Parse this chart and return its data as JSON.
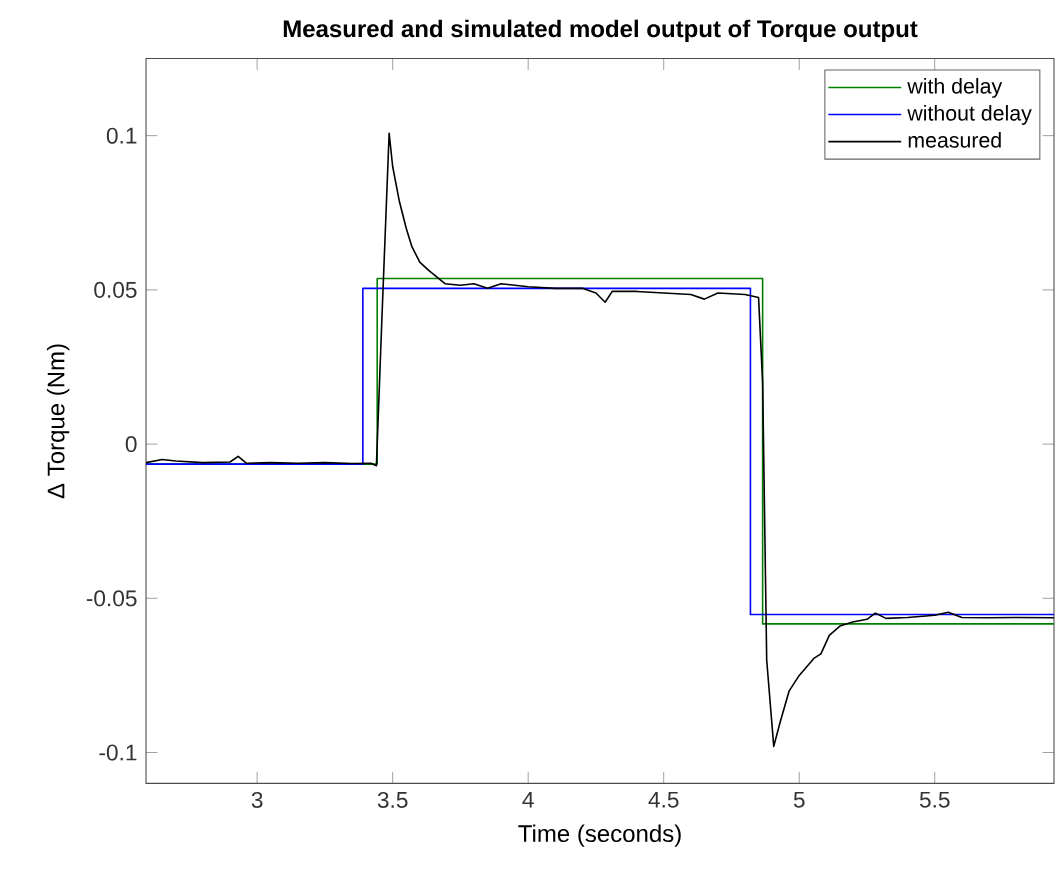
{
  "chart_data": {
    "type": "line",
    "title": "Measured and simulated model output of Torque output",
    "xlabel": "Time (seconds)",
    "ylabel": "Δ Torque (Nm)",
    "xlim": [
      2.59,
      5.94
    ],
    "ylim": [
      -0.11,
      0.125
    ],
    "xticks": [
      3,
      3.5,
      4,
      4.5,
      5,
      5.5
    ],
    "yticks": [
      -0.1,
      -0.05,
      0,
      0.05,
      0.1
    ],
    "legend": "top right",
    "grid": false,
    "marker": "none",
    "line_style": "solid",
    "series": [
      {
        "name": "with delay",
        "color": "#007f00",
        "x": [
          2.59,
          3.443,
          3.443,
          4.865,
          4.865,
          5.94
        ],
        "values": [
          -0.0065,
          -0.0065,
          0.0537,
          0.0537,
          -0.0583,
          -0.0583
        ]
      },
      {
        "name": "without delay",
        "color": "#0000ff",
        "x": [
          2.59,
          3.39,
          3.39,
          4.82,
          4.82,
          5.94
        ],
        "values": [
          -0.0065,
          -0.0065,
          0.0505,
          0.0505,
          -0.0553,
          -0.0553
        ]
      },
      {
        "name": "measured",
        "color": "#000000",
        "x": [
          2.59,
          2.65,
          2.7,
          2.8,
          2.9,
          2.93,
          2.96,
          3.05,
          3.15,
          3.25,
          3.35,
          3.42,
          3.44,
          3.46,
          3.487,
          3.5,
          3.524,
          3.55,
          3.571,
          3.6,
          3.633,
          3.693,
          3.75,
          3.8,
          3.85,
          3.9,
          4.0,
          4.1,
          4.2,
          4.25,
          4.284,
          4.31,
          4.4,
          4.5,
          4.6,
          4.65,
          4.7,
          4.8,
          4.85,
          4.865,
          4.88,
          4.906,
          4.93,
          4.963,
          5.0,
          5.054,
          5.08,
          5.111,
          5.15,
          5.197,
          5.25,
          5.281,
          5.32,
          5.4,
          5.5,
          5.55,
          5.6,
          5.7,
          5.8,
          5.94
        ],
        "values": [
          -0.006,
          -0.005,
          -0.0055,
          -0.006,
          -0.0058,
          -0.004,
          -0.0062,
          -0.006,
          -0.0062,
          -0.006,
          -0.0063,
          -0.0062,
          -0.007,
          0.04,
          0.1008,
          0.09,
          0.079,
          0.07,
          0.064,
          0.059,
          0.0563,
          0.052,
          0.0515,
          0.052,
          0.0505,
          0.052,
          0.051,
          0.0505,
          0.0505,
          0.049,
          0.046,
          0.0495,
          0.0495,
          0.049,
          0.0485,
          0.047,
          0.049,
          0.0485,
          0.0475,
          0.02,
          -0.07,
          -0.098,
          -0.09,
          -0.08,
          -0.075,
          -0.0695,
          -0.068,
          -0.062,
          -0.059,
          -0.0577,
          -0.0568,
          -0.0548,
          -0.0565,
          -0.0562,
          -0.0555,
          -0.0545,
          -0.0562,
          -0.0563,
          -0.0562,
          -0.0563
        ]
      }
    ]
  }
}
